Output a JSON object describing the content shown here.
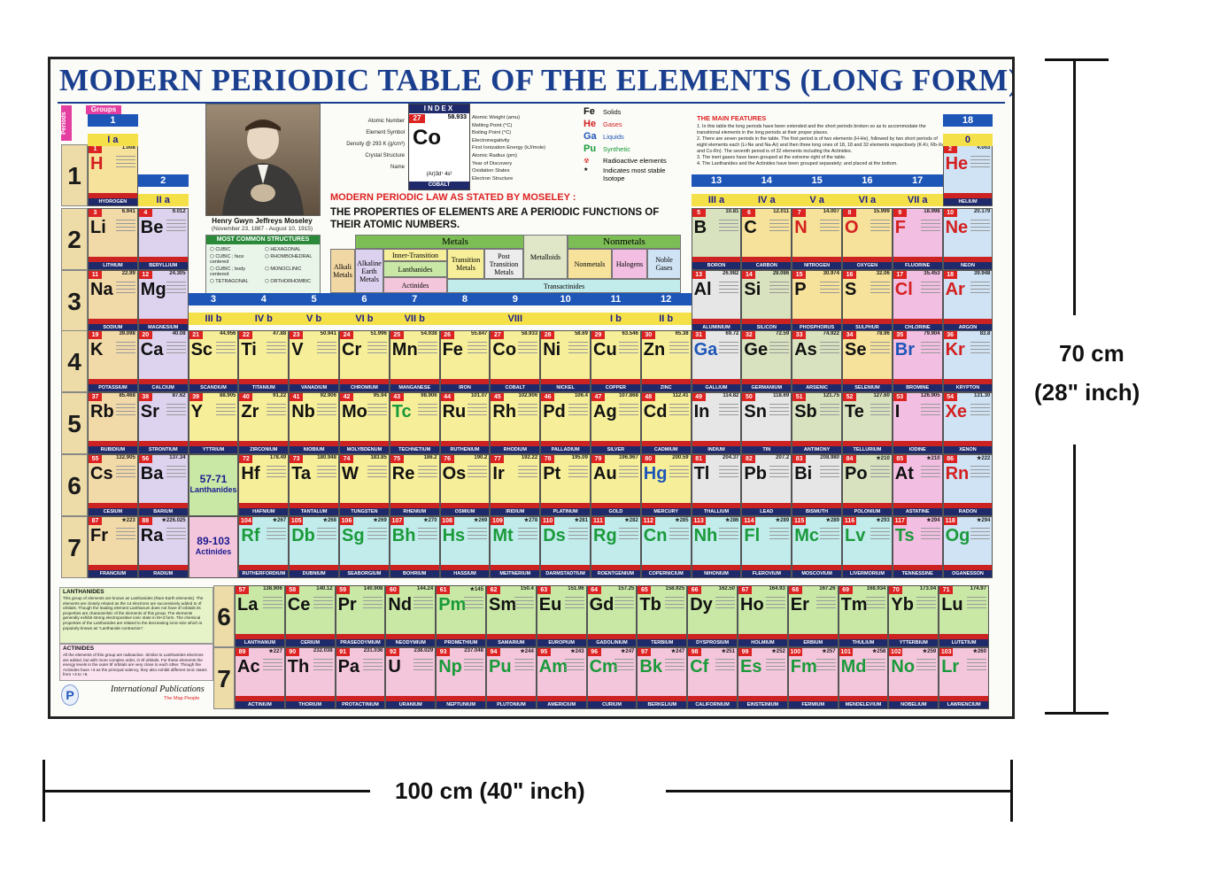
{
  "poster": {
    "title": "MODERN PERIODIC TABLE OF THE ELEMENTS (LONG FORM)",
    "groups_tag": "Groups",
    "periods_tag": "Periods",
    "group_numbers": [
      "1",
      "2",
      "3",
      "4",
      "5",
      "6",
      "7",
      "8",
      "9",
      "10",
      "11",
      "12",
      "13",
      "14",
      "15",
      "16",
      "17",
      "18"
    ],
    "subgroup_labels": {
      "g1": "I a",
      "g2": "II a",
      "g3": "III b",
      "g4": "IV b",
      "g5": "V b",
      "g6": "VI b",
      "g7": "VII b",
      "g8": "VIII",
      "g11": "I b",
      "g12": "II b",
      "g13": "III a",
      "g14": "IV a",
      "g15": "V a",
      "g16": "VI a",
      "g17": "VII a",
      "g18": "0"
    },
    "period_numbers": [
      "1",
      "2",
      "3",
      "4",
      "5",
      "6",
      "7"
    ],
    "lanthanide_slot": {
      "range": "57-71",
      "label": "Lanthanides"
    },
    "actinide_slot": {
      "range": "89-103",
      "label": "Actinides"
    },
    "scientist": {
      "name": "Henry Gwyn Jeffreys Moseley",
      "dates": "(November 23, 1887 - August 10, 1915)"
    },
    "structures": {
      "heading": "MOST COMMON STRUCTURES",
      "items": [
        "CUBIC",
        "HEXAGONAL",
        "CUBIC ; face centered",
        "RHOMBOHEDRAL",
        "CUBIC ; body centered",
        "MONOCLINIC",
        "TETRAGONAL",
        "ORTHORHOMBIC"
      ]
    },
    "index": {
      "heading": "INDEX",
      "atomic_number": "27",
      "weight": "58.933",
      "symbol": "Co",
      "name": "COBALT",
      "config": "(Ar)3d⁷ 4s²",
      "left_labels": [
        "Atomic Number",
        "Element Symbol",
        "Density @ 293 K (g/cm³)",
        "Crystal Structure",
        "Name"
      ],
      "right_labels": [
        "Atomic Weight (amu)",
        "Melting Point (°C)",
        "Boiling Point (°C)",
        "Electronegativity",
        "First Ionization Energy (kJ/mole)",
        "Atomic Radius (pm)",
        "Year of Discovery",
        "Oxidation States",
        "Electron Structure"
      ]
    },
    "state_key": {
      "items": [
        {
          "sym": "Fe",
          "label": "Solids",
          "color": "#111111"
        },
        {
          "sym": "He",
          "label": "Gases",
          "color": "#d42020"
        },
        {
          "sym": "Ga",
          "label": "Liquids",
          "color": "#1e56b8"
        },
        {
          "sym": "Pu",
          "label": "Synthetic",
          "color": "#1a9a3a"
        }
      ],
      "radioactive": "Radioactive elements",
      "stable": "Indicates most stable Isotope"
    },
    "moseley": {
      "heading": "MODERN PERIODIC LAW AS STATED BY MOSELEY :",
      "text": "THE PROPERTIES OF ELEMENTS ARE A PERIODIC FUNCTIONS OF THEIR ATOMIC NUMBERS."
    },
    "classes": {
      "metals": "Metals",
      "nonmetals": "Nonmetals",
      "alkali": "Alkali Metals",
      "alkaline": "Alkaline Earth Metals",
      "inner": "Inner-Transition",
      "lanthanides": "Lanthanides",
      "actinides": "Actinides",
      "transition": "Transition Metals",
      "post": "Post Transition Metals",
      "metalloids": "Metalloids",
      "nonmetals2": "Nonmetals",
      "halogens": "Halogens",
      "noble": "Noble Gases",
      "transactinides": "Transactinides"
    },
    "features": {
      "heading": "THE MAIN FEATURES",
      "items": [
        "1. In this table the long periods have been extended and the short periods broken so as to accommodate the transitional elements in the long periods at their proper places.",
        "2. There are seven periods in the table. The first period is of two elements (H-He), followed by two short periods of eight elements each (Li-Ne and Na-Ar) and then three long ones of 18, 18 and 32 elements respectively (K-Kr, Rb-Xe and Cs-Rn). The seventh period is of 32 elements including the Actinides.",
        "3. The inert gases have been grouped at the extreme right of the table.",
        "4. The Lanthanides and the Actinides have been grouped separately; and placed at the bottom."
      ]
    },
    "lanthanides_note": {
      "heading": "LANTHANIDES",
      "text": "This group of elements are known as Lanthanides (Rare Earth elements). The elements are closely related as the 14 electrons are successively added to 4f orbitals. Though the leading element Lanthanum does not have 4f orbitals its properties are characteristic of the elements of this group. The elements generally exhibit strong electropositive ionic state in M+3 form. The chemical properties of the Lanthanides are related to the decreasing ionic-size which is popularly known as \"Lanthanide contraction\"."
    },
    "actinides_note": {
      "heading": "ACTINIDES",
      "text": "All the elements of this group are radioactive. Similar to Lanthanides electrons are added, but with more complex order, in 5f orbitals. For these elements the energy levels in the outer 5f orbitals are very close to each other. Though the Actinides have +3 as the principal valency, they also exhibit different ionic states from +3 to +6."
    },
    "publisher": {
      "name": "International Publications",
      "tagline": "The Map People"
    }
  },
  "elements": [
    {
      "n": "1",
      "s": "H",
      "w": "1.008",
      "name": "HYDROGEN",
      "st": "g"
    },
    {
      "n": "2",
      "s": "He",
      "w": "4.003",
      "name": "HELIUM",
      "st": "g"
    },
    {
      "n": "3",
      "s": "Li",
      "w": "6.941",
      "name": "LITHIUM",
      "st": "s"
    },
    {
      "n": "4",
      "s": "Be",
      "w": "9.012",
      "name": "BERYLLIUM",
      "st": "s"
    },
    {
      "n": "5",
      "s": "B",
      "w": "10.81",
      "name": "BORON",
      "st": "s"
    },
    {
      "n": "6",
      "s": "C",
      "w": "12.011",
      "name": "CARBON",
      "st": "s"
    },
    {
      "n": "7",
      "s": "N",
      "w": "14.007",
      "name": "NITROGEN",
      "st": "g"
    },
    {
      "n": "8",
      "s": "O",
      "w": "15.999",
      "name": "OXYGEN",
      "st": "g"
    },
    {
      "n": "9",
      "s": "F",
      "w": "18.998",
      "name": "FLUORINE",
      "st": "g"
    },
    {
      "n": "10",
      "s": "Ne",
      "w": "20.179",
      "name": "NEON",
      "st": "g"
    },
    {
      "n": "11",
      "s": "Na",
      "w": "22.99",
      "name": "SODIUM",
      "st": "s"
    },
    {
      "n": "12",
      "s": "Mg",
      "w": "24.305",
      "name": "MAGNESIUM",
      "st": "s"
    },
    {
      "n": "13",
      "s": "Al",
      "w": "26.982",
      "name": "ALUMINIUM",
      "st": "s"
    },
    {
      "n": "14",
      "s": "Si",
      "w": "28.086",
      "name": "SILICON",
      "st": "s"
    },
    {
      "n": "15",
      "s": "P",
      "w": "30.974",
      "name": "PHOSPHORUS",
      "st": "s"
    },
    {
      "n": "16",
      "s": "S",
      "w": "32.06",
      "name": "SULPHUR",
      "st": "s"
    },
    {
      "n": "17",
      "s": "Cl",
      "w": "35.453",
      "name": "CHLORINE",
      "st": "g"
    },
    {
      "n": "18",
      "s": "Ar",
      "w": "39.948",
      "name": "ARGON",
      "st": "g"
    },
    {
      "n": "19",
      "s": "K",
      "w": "39.098",
      "name": "POTASSIUM",
      "st": "s"
    },
    {
      "n": "20",
      "s": "Ca",
      "w": "40.08",
      "name": "CALCIUM",
      "st": "s"
    },
    {
      "n": "21",
      "s": "Sc",
      "w": "44.956",
      "name": "SCANDIUM",
      "st": "s"
    },
    {
      "n": "22",
      "s": "Ti",
      "w": "47.88",
      "name": "TITANIUM",
      "st": "s"
    },
    {
      "n": "23",
      "s": "V",
      "w": "50.941",
      "name": "VANADIUM",
      "st": "s"
    },
    {
      "n": "24",
      "s": "Cr",
      "w": "51.996",
      "name": "CHROMIUM",
      "st": "s"
    },
    {
      "n": "25",
      "s": "Mn",
      "w": "54.938",
      "name": "MANGANESE",
      "st": "s"
    },
    {
      "n": "26",
      "s": "Fe",
      "w": "55.847",
      "name": "IRON",
      "st": "s"
    },
    {
      "n": "27",
      "s": "Co",
      "w": "58.933",
      "name": "COBALT",
      "st": "s"
    },
    {
      "n": "28",
      "s": "Ni",
      "w": "58.69",
      "name": "NICKEL",
      "st": "s"
    },
    {
      "n": "29",
      "s": "Cu",
      "w": "63.546",
      "name": "COPPER",
      "st": "s"
    },
    {
      "n": "30",
      "s": "Zn",
      "w": "65.38",
      "name": "ZINC",
      "st": "s"
    },
    {
      "n": "31",
      "s": "Ga",
      "w": "69.72",
      "name": "GALLIUM",
      "st": "l"
    },
    {
      "n": "32",
      "s": "Ge",
      "w": "72.59",
      "name": "GERMANIUM",
      "st": "s"
    },
    {
      "n": "33",
      "s": "As",
      "w": "74.922",
      "name": "ARSENIC",
      "st": "s"
    },
    {
      "n": "34",
      "s": "Se",
      "w": "78.96",
      "name": "SELENIUM",
      "st": "s"
    },
    {
      "n": "35",
      "s": "Br",
      "w": "79.904",
      "name": "BROMINE",
      "st": "l"
    },
    {
      "n": "36",
      "s": "Kr",
      "w": "83.8",
      "name": "KRYPTON",
      "st": "g"
    },
    {
      "n": "37",
      "s": "Rb",
      "w": "85.468",
      "name": "RUBIDIUM",
      "st": "s"
    },
    {
      "n": "38",
      "s": "Sr",
      "w": "87.62",
      "name": "STRONTIUM",
      "st": "s"
    },
    {
      "n": "39",
      "s": "Y",
      "w": "88.905",
      "name": "YTTRIUM",
      "st": "s"
    },
    {
      "n": "40",
      "s": "Zr",
      "w": "91.22",
      "name": "ZIRCONIUM",
      "st": "s"
    },
    {
      "n": "41",
      "s": "Nb",
      "w": "92.906",
      "name": "NIOBIUM",
      "st": "s"
    },
    {
      "n": "42",
      "s": "Mo",
      "w": "95.94",
      "name": "MOLYBDENUM",
      "st": "s"
    },
    {
      "n": "43",
      "s": "Tc",
      "w": "98.906",
      "name": "TECHNETIUM",
      "st": "x"
    },
    {
      "n": "44",
      "s": "Ru",
      "w": "101.07",
      "name": "RUTHENIUM",
      "st": "s"
    },
    {
      "n": "45",
      "s": "Rh",
      "w": "102.906",
      "name": "RHODIUM",
      "st": "s"
    },
    {
      "n": "46",
      "s": "Pd",
      "w": "106.4",
      "name": "PALLADIUM",
      "st": "s"
    },
    {
      "n": "47",
      "s": "Ag",
      "w": "107.868",
      "name": "SILVER",
      "st": "s"
    },
    {
      "n": "48",
      "s": "Cd",
      "w": "112.41",
      "name": "CADMIUM",
      "st": "s"
    },
    {
      "n": "49",
      "s": "In",
      "w": "114.82",
      "name": "INDIUM",
      "st": "s"
    },
    {
      "n": "50",
      "s": "Sn",
      "w": "118.69",
      "name": "TIN",
      "st": "s"
    },
    {
      "n": "51",
      "s": "Sb",
      "w": "121.75",
      "name": "ANTIMONY",
      "st": "s"
    },
    {
      "n": "52",
      "s": "Te",
      "w": "127.60",
      "name": "TELLURIUM",
      "st": "s"
    },
    {
      "n": "53",
      "s": "I",
      "w": "126.905",
      "name": "IODINE",
      "st": "s"
    },
    {
      "n": "54",
      "s": "Xe",
      "w": "131.30",
      "name": "XENON",
      "st": "g"
    },
    {
      "n": "55",
      "s": "Cs",
      "w": "132.905",
      "name": "CESIUM",
      "st": "s"
    },
    {
      "n": "56",
      "s": "Ba",
      "w": "137.34",
      "name": "BARIUM",
      "st": "s"
    },
    {
      "n": "72",
      "s": "Hf",
      "w": "178.49",
      "name": "HAFNIUM",
      "st": "s"
    },
    {
      "n": "73",
      "s": "Ta",
      "w": "180.948",
      "name": "TANTALUM",
      "st": "s"
    },
    {
      "n": "74",
      "s": "W",
      "w": "183.85",
      "name": "TUNGSTEN",
      "st": "s"
    },
    {
      "n": "75",
      "s": "Re",
      "w": "186.2",
      "name": "RHENIUM",
      "st": "s"
    },
    {
      "n": "76",
      "s": "Os",
      "w": "190.2",
      "name": "OSMIUM",
      "st": "s"
    },
    {
      "n": "77",
      "s": "Ir",
      "w": "192.22",
      "name": "IRIDIUM",
      "st": "s"
    },
    {
      "n": "78",
      "s": "Pt",
      "w": "195.09",
      "name": "PLATINUM",
      "st": "s"
    },
    {
      "n": "79",
      "s": "Au",
      "w": "196.967",
      "name": "GOLD",
      "st": "s"
    },
    {
      "n": "80",
      "s": "Hg",
      "w": "200.59",
      "name": "MERCURY",
      "st": "l"
    },
    {
      "n": "81",
      "s": "Tl",
      "w": "204.37",
      "name": "THALLIUM",
      "st": "s"
    },
    {
      "n": "82",
      "s": "Pb",
      "w": "207.2",
      "name": "LEAD",
      "st": "s"
    },
    {
      "n": "83",
      "s": "Bi",
      "w": "208.980",
      "name": "BISMUTH",
      "st": "s"
    },
    {
      "n": "84",
      "s": "Po",
      "w": "★210",
      "name": "POLONIUM",
      "st": "s"
    },
    {
      "n": "85",
      "s": "At",
      "w": "★210",
      "name": "ASTATINE",
      "st": "s"
    },
    {
      "n": "86",
      "s": "Rn",
      "w": "★222",
      "name": "RADON",
      "st": "g"
    },
    {
      "n": "87",
      "s": "Fr",
      "w": "★223",
      "name": "FRANCIUM",
      "st": "s"
    },
    {
      "n": "88",
      "s": "Ra",
      "w": "★226.025",
      "name": "RADIUM",
      "st": "s"
    },
    {
      "n": "104",
      "s": "Rf",
      "w": "★267",
      "name": "RUTHERFORDIUM",
      "st": "x"
    },
    {
      "n": "105",
      "s": "Db",
      "w": "★268",
      "name": "DUBNIUM",
      "st": "x"
    },
    {
      "n": "106",
      "s": "Sg",
      "w": "★269",
      "name": "SEABORGIUM",
      "st": "x"
    },
    {
      "n": "107",
      "s": "Bh",
      "w": "★270",
      "name": "BOHRIUM",
      "st": "x"
    },
    {
      "n": "108",
      "s": "Hs",
      "w": "★269",
      "name": "HASSIUM",
      "st": "x"
    },
    {
      "n": "109",
      "s": "Mt",
      "w": "★278",
      "name": "MEITNERIUM",
      "st": "x"
    },
    {
      "n": "110",
      "s": "Ds",
      "w": "★281",
      "name": "DARMSTADTIUM",
      "st": "x"
    },
    {
      "n": "111",
      "s": "Rg",
      "w": "★282",
      "name": "ROENTGENIUM",
      "st": "x"
    },
    {
      "n": "112",
      "s": "Cn",
      "w": "★285",
      "name": "COPERNICIUM",
      "st": "x"
    },
    {
      "n": "113",
      "s": "Nh",
      "w": "★286",
      "name": "NIHONIUM",
      "st": "x"
    },
    {
      "n": "114",
      "s": "Fl",
      "w": "★289",
      "name": "FLEROVIUM",
      "st": "x"
    },
    {
      "n": "115",
      "s": "Mc",
      "w": "★289",
      "name": "MOSCOVIUM",
      "st": "x"
    },
    {
      "n": "116",
      "s": "Lv",
      "w": "★293",
      "name": "LIVERMORIUM",
      "st": "x"
    },
    {
      "n": "117",
      "s": "Ts",
      "w": "★294",
      "name": "TENNESSINE",
      "st": "x"
    },
    {
      "n": "118",
      "s": "Og",
      "w": "★294",
      "name": "OGANESSON",
      "st": "x"
    },
    {
      "n": "57",
      "s": "La",
      "w": "138.906",
      "name": "LANTHANUM",
      "st": "s"
    },
    {
      "n": "58",
      "s": "Ce",
      "w": "140.12",
      "name": "CERIUM",
      "st": "s"
    },
    {
      "n": "59",
      "s": "Pr",
      "w": "140.908",
      "name": "PRASEODYMIUM",
      "st": "s"
    },
    {
      "n": "60",
      "s": "Nd",
      "w": "144.24",
      "name": "NEODYMIUM",
      "st": "s"
    },
    {
      "n": "61",
      "s": "Pm",
      "w": "★145",
      "name": "PROMETHIUM",
      "st": "x"
    },
    {
      "n": "62",
      "s": "Sm",
      "w": "150.4",
      "name": "SAMARIUM",
      "st": "s"
    },
    {
      "n": "63",
      "s": "Eu",
      "w": "151.96",
      "name": "EUROPIUM",
      "st": "s"
    },
    {
      "n": "64",
      "s": "Gd",
      "w": "157.25",
      "name": "GADOLINIUM",
      "st": "s"
    },
    {
      "n": "65",
      "s": "Tb",
      "w": "158.925",
      "name": "TERBIUM",
      "st": "s"
    },
    {
      "n": "66",
      "s": "Dy",
      "w": "162.50",
      "name": "DYSPROSIUM",
      "st": "s"
    },
    {
      "n": "67",
      "s": "Ho",
      "w": "164.93",
      "name": "HOLMIUM",
      "st": "s"
    },
    {
      "n": "68",
      "s": "Er",
      "w": "167.26",
      "name": "ERBIUM",
      "st": "s"
    },
    {
      "n": "69",
      "s": "Tm",
      "w": "168.934",
      "name": "THULIUM",
      "st": "s"
    },
    {
      "n": "70",
      "s": "Yb",
      "w": "173.04",
      "name": "YTTERBIUM",
      "st": "s"
    },
    {
      "n": "71",
      "s": "Lu",
      "w": "174.97",
      "name": "LUTETIUM",
      "st": "s"
    },
    {
      "n": "89",
      "s": "Ac",
      "w": "★227",
      "name": "ACTINIUM",
      "st": "s"
    },
    {
      "n": "90",
      "s": "Th",
      "w": "232.038",
      "name": "THORIUM",
      "st": "s"
    },
    {
      "n": "91",
      "s": "Pa",
      "w": "231.036",
      "name": "PROTACTINIUM",
      "st": "s"
    },
    {
      "n": "92",
      "s": "U",
      "w": "238.029",
      "name": "URANIUM",
      "st": "s"
    },
    {
      "n": "93",
      "s": "Np",
      "w": "237.048",
      "name": "NEPTUNIUM",
      "st": "x"
    },
    {
      "n": "94",
      "s": "Pu",
      "w": "★244",
      "name": "PLUTONIUM",
      "st": "x"
    },
    {
      "n": "95",
      "s": "Am",
      "w": "★243",
      "name": "AMERICIUM",
      "st": "x"
    },
    {
      "n": "96",
      "s": "Cm",
      "w": "★247",
      "name": "CURIUM",
      "st": "x"
    },
    {
      "n": "97",
      "s": "Bk",
      "w": "★247",
      "name": "BERKELIUM",
      "st": "x"
    },
    {
      "n": "98",
      "s": "Cf",
      "w": "★251",
      "name": "CALIFORNIUM",
      "st": "x"
    },
    {
      "n": "99",
      "s": "Es",
      "w": "★252",
      "name": "EINSTEINIUM",
      "st": "x"
    },
    {
      "n": "100",
      "s": "Fm",
      "w": "★257",
      "name": "FERMIUM",
      "st": "x"
    },
    {
      "n": "101",
      "s": "Md",
      "w": "★258",
      "name": "MENDELEVIUM",
      "st": "x"
    },
    {
      "n": "102",
      "s": "No",
      "w": "★259",
      "name": "NOBELIUM",
      "st": "x"
    },
    {
      "n": "103",
      "s": "Lr",
      "w": "★260",
      "name": "LAWRENCIUM",
      "st": "x"
    }
  ],
  "dimensions": {
    "height_cm": "70 cm",
    "height_in": "(28\" inch)",
    "width": "100 cm (40\" inch)"
  }
}
